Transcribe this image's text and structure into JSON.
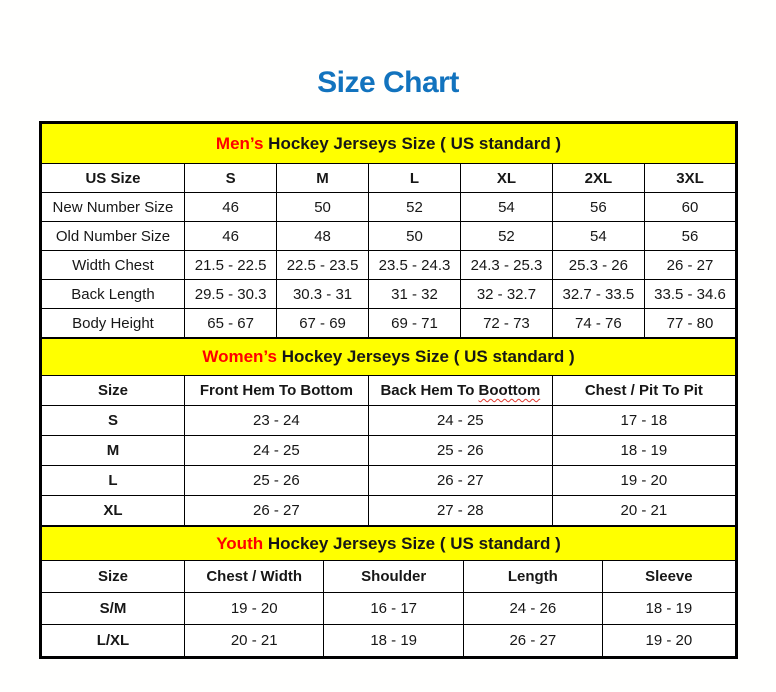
{
  "page": {
    "title": "Size Chart"
  },
  "colors": {
    "title_blue": "#1273BE",
    "banner_yellow": "#FFFF00",
    "accent_red": "#FF0000",
    "border_black": "#000000"
  },
  "sections": {
    "men": {
      "banner": {
        "highlight": "Men’s",
        "rest": " Hockey Jerseys Size ( US standard )"
      },
      "columns": [
        "US Size",
        "S",
        "M",
        "L",
        "XL",
        "2XL",
        "3XL"
      ],
      "rows": [
        [
          "New Number Size",
          "46",
          "50",
          "52",
          "54",
          "56",
          "60"
        ],
        [
          "Old Number Size",
          "46",
          "48",
          "50",
          "52",
          "54",
          "56"
        ],
        [
          "Width Chest",
          "21.5 - 22.5",
          "22.5 - 23.5",
          "23.5 - 24.3",
          "24.3 - 25.3",
          "25.3 - 26",
          "26 - 27"
        ],
        [
          "Back Length",
          "29.5 - 30.3",
          "30.3 - 31",
          "31 - 32",
          "32 - 32.7",
          "32.7 - 33.5",
          "33.5 - 34.6"
        ],
        [
          "Body Height",
          "65 - 67",
          "67 - 69",
          "69 - 71",
          "72 - 73",
          "74 - 76",
          "77 - 80"
        ]
      ]
    },
    "women": {
      "banner": {
        "highlight": "Women’s",
        "rest": " Hockey Jerseys Size ( US standard )"
      },
      "header": {
        "size": "Size",
        "front_hem": "Front Hem To Bottom",
        "back_hem_prefix": "Back Hem To ",
        "back_hem_word": "Boottom",
        "chest_pit": "Chest / Pit To Pit"
      },
      "rows": [
        [
          "S",
          "23 - 24",
          "24 - 25",
          "17 - 18"
        ],
        [
          "M",
          "24 - 25",
          "25 - 26",
          "18 - 19"
        ],
        [
          "L",
          "25 - 26",
          "26 - 27",
          "19 - 20"
        ],
        [
          "XL",
          "26 - 27",
          "27 - 28",
          "20 - 21"
        ]
      ]
    },
    "youth": {
      "banner": {
        "highlight": "Youth",
        "rest": " Hockey Jerseys Size ( US standard )"
      },
      "columns": [
        "Size",
        "Chest / Width",
        "Shoulder",
        "Length",
        "Sleeve"
      ],
      "rows": [
        [
          "S/M",
          "19 - 20",
          "16 - 17",
          "24 - 26",
          "18 - 19"
        ],
        [
          "L/XL",
          "20 - 21",
          "18 - 19",
          "26 - 27",
          "19 - 20"
        ]
      ]
    }
  }
}
